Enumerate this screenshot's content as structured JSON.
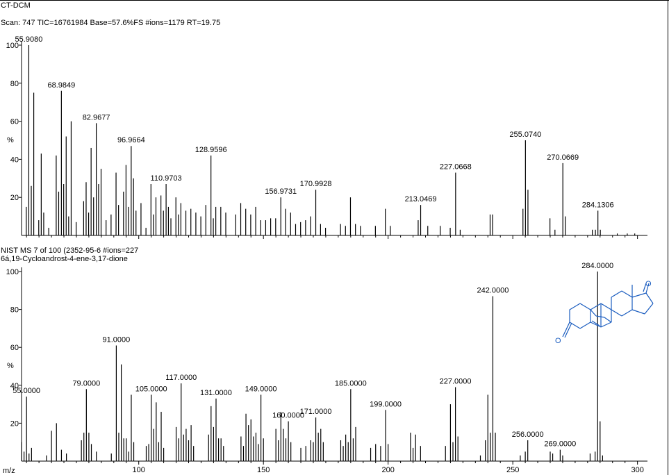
{
  "header": {
    "window_title": "CT-DCM",
    "scan_line": "Scan: 747   TIC=16761984   Base=57.6%FS   #ions=1179   RT=19.75"
  },
  "library": {
    "hit_line": "NIST MS 7 of 100 (2352-95-6   #ions=227",
    "compound_name": "6á,19-Cycloandrost-4-ene-3,17-dione"
  },
  "axis": {
    "y_unit": "%",
    "x_unit": "m/z"
  },
  "colors": {
    "spectrum": "#000000",
    "structure": "#1a5cbf"
  },
  "chart_data": [
    {
      "type": "bar",
      "title": "Scan: 747   TIC=16761984   Base=57.6%FS   #ions=1179   RT=19.75",
      "ylabel": "%",
      "xlim": [
        53,
        304
      ],
      "ylim": [
        0,
        100
      ],
      "y_ticks": [
        20,
        40,
        60,
        80,
        100
      ],
      "grid": false,
      "peaks": [
        [
          54.9,
          15
        ],
        [
          55.91,
          100
        ],
        [
          56.9,
          26
        ],
        [
          57.9,
          75
        ],
        [
          59.9,
          8
        ],
        [
          60.9,
          43
        ],
        [
          61.9,
          12
        ],
        [
          63.9,
          4
        ],
        [
          66.9,
          42
        ],
        [
          67.9,
          23
        ],
        [
          68.98,
          76
        ],
        [
          69.9,
          27
        ],
        [
          70.9,
          52
        ],
        [
          71.9,
          10
        ],
        [
          72.9,
          60
        ],
        [
          74.9,
          7
        ],
        [
          77.9,
          18
        ],
        [
          78.9,
          28
        ],
        [
          79.9,
          12
        ],
        [
          80.9,
          46
        ],
        [
          81.9,
          20
        ],
        [
          82.97,
          59
        ],
        [
          83.9,
          27
        ],
        [
          84.9,
          35
        ],
        [
          86.9,
          8
        ],
        [
          88.9,
          11
        ],
        [
          90.9,
          33
        ],
        [
          91.9,
          16
        ],
        [
          93.9,
          23
        ],
        [
          94.9,
          37
        ],
        [
          95.9,
          15
        ],
        [
          96.97,
          47
        ],
        [
          97.9,
          30
        ],
        [
          98.9,
          13
        ],
        [
          100.9,
          17
        ],
        [
          102.9,
          4
        ],
        [
          104.9,
          27
        ],
        [
          105.9,
          11
        ],
        [
          106.9,
          20
        ],
        [
          108.9,
          21
        ],
        [
          109.9,
          13
        ],
        [
          110.97,
          27
        ],
        [
          111.9,
          15
        ],
        [
          112.9,
          9
        ],
        [
          114.9,
          20
        ],
        [
          115.9,
          11
        ],
        [
          116.9,
          17
        ],
        [
          118.9,
          13
        ],
        [
          120.9,
          14
        ],
        [
          122.9,
          12
        ],
        [
          124.9,
          10
        ],
        [
          126.9,
          16
        ],
        [
          128.96,
          42
        ],
        [
          129.9,
          9
        ],
        [
          130.9,
          15
        ],
        [
          132.9,
          15
        ],
        [
          134.9,
          12
        ],
        [
          138.9,
          11
        ],
        [
          140.9,
          17
        ],
        [
          142.9,
          14
        ],
        [
          144.9,
          11
        ],
        [
          146.9,
          15
        ],
        [
          148.9,
          8
        ],
        [
          150.9,
          8
        ],
        [
          152.9,
          9
        ],
        [
          154.9,
          9
        ],
        [
          156.97,
          20
        ],
        [
          158.9,
          14
        ],
        [
          160.9,
          12
        ],
        [
          162.9,
          6
        ],
        [
          164.9,
          7
        ],
        [
          166.9,
          8
        ],
        [
          168.9,
          10
        ],
        [
          170.99,
          24
        ],
        [
          172.9,
          6
        ],
        [
          174.9,
          4
        ],
        [
          180.9,
          6
        ],
        [
          182.9,
          5
        ],
        [
          184.9,
          20
        ],
        [
          186.9,
          6
        ],
        [
          188.9,
          5
        ],
        [
          194.9,
          5
        ],
        [
          198.9,
          14
        ],
        [
          200.9,
          5
        ],
        [
          212.05,
          8
        ],
        [
          213.05,
          16
        ],
        [
          215.9,
          5
        ],
        [
          220.9,
          5
        ],
        [
          224.9,
          4
        ],
        [
          227.07,
          33
        ],
        [
          228.9,
          3
        ],
        [
          240.9,
          11
        ],
        [
          241.9,
          11
        ],
        [
          254.07,
          14
        ],
        [
          255.07,
          50
        ],
        [
          256.07,
          24
        ],
        [
          264.9,
          9
        ],
        [
          266.9,
          3
        ],
        [
          270.07,
          38
        ],
        [
          271.07,
          10
        ],
        [
          281.9,
          3
        ],
        [
          283.13,
          3
        ],
        [
          284.13,
          13
        ],
        [
          285.1,
          3
        ],
        [
          291.9,
          1
        ],
        [
          295.9,
          1
        ],
        [
          298.9,
          1
        ]
      ],
      "annotations": [
        {
          "mz": 55.908,
          "text": "55.9080"
        },
        {
          "mz": 68.9849,
          "text": "68.9849"
        },
        {
          "mz": 82.9677,
          "text": "82.9677"
        },
        {
          "mz": 96.9664,
          "text": "96.9664"
        },
        {
          "mz": 110.9703,
          "text": "110.9703"
        },
        {
          "mz": 128.9596,
          "text": "128.9596"
        },
        {
          "mz": 156.9731,
          "text": "156.9731"
        },
        {
          "mz": 170.9928,
          "text": "170.9928"
        },
        {
          "mz": 213.0469,
          "text": "213.0469"
        },
        {
          "mz": 227.0668,
          "text": "227.0668"
        },
        {
          "mz": 255.074,
          "text": "255.0740"
        },
        {
          "mz": 270.0669,
          "text": "270.0669"
        },
        {
          "mz": 284.1306,
          "text": "284.1306"
        }
      ]
    },
    {
      "type": "bar",
      "title": "NIST MS 7 of 100 (2352-95-6   #ions=227",
      "xlabel": "m/z",
      "ylabel": "%",
      "xlim": [
        53,
        304
      ],
      "ylim": [
        0,
        100
      ],
      "x_ticks": [
        100,
        150,
        200,
        250,
        300
      ],
      "y_ticks": [
        20,
        40,
        60,
        80,
        100
      ],
      "grid": false,
      "peaks": [
        [
          53,
          10
        ],
        [
          54,
          5
        ],
        [
          55,
          34
        ],
        [
          56,
          4
        ],
        [
          57,
          7
        ],
        [
          63,
          3
        ],
        [
          65,
          16
        ],
        [
          67,
          20
        ],
        [
          69,
          6
        ],
        [
          71,
          4
        ],
        [
          77,
          11
        ],
        [
          78,
          15
        ],
        [
          79,
          38
        ],
        [
          80,
          15
        ],
        [
          81,
          9
        ],
        [
          83,
          5
        ],
        [
          89,
          4
        ],
        [
          91,
          61
        ],
        [
          92,
          15
        ],
        [
          93,
          51
        ],
        [
          94,
          12
        ],
        [
          95,
          12
        ],
        [
          96,
          5
        ],
        [
          97,
          35
        ],
        [
          98,
          10
        ],
        [
          103,
          8
        ],
        [
          104,
          9
        ],
        [
          105,
          35
        ],
        [
          106,
          17
        ],
        [
          107,
          31
        ],
        [
          108,
          10
        ],
        [
          109,
          26
        ],
        [
          110,
          7
        ],
        [
          115,
          18
        ],
        [
          116,
          12
        ],
        [
          117,
          41
        ],
        [
          118,
          14
        ],
        [
          119,
          17
        ],
        [
          120,
          11
        ],
        [
          121,
          19
        ],
        [
          122,
          8
        ],
        [
          128,
          14
        ],
        [
          129,
          29
        ],
        [
          130,
          18
        ],
        [
          131,
          33
        ],
        [
          132,
          12
        ],
        [
          133,
          12
        ],
        [
          134,
          8
        ],
        [
          141,
          13
        ],
        [
          142,
          8
        ],
        [
          143,
          25
        ],
        [
          144,
          19
        ],
        [
          145,
          22
        ],
        [
          146,
          13
        ],
        [
          147,
          15
        ],
        [
          148,
          9
        ],
        [
          149,
          35
        ],
        [
          150,
          12
        ],
        [
          155,
          17
        ],
        [
          156,
          11
        ],
        [
          157,
          26
        ],
        [
          158,
          17
        ],
        [
          159,
          12
        ],
        [
          160,
          21
        ],
        [
          161,
          10
        ],
        [
          165,
          7
        ],
        [
          167,
          8
        ],
        [
          169,
          11
        ],
        [
          170,
          10
        ],
        [
          171,
          23
        ],
        [
          172,
          15
        ],
        [
          173,
          17
        ],
        [
          174,
          10
        ],
        [
          181,
          11
        ],
        [
          182,
          8
        ],
        [
          183,
          14
        ],
        [
          184,
          10
        ],
        [
          185,
          38
        ],
        [
          186,
          12
        ],
        [
          187,
          18
        ],
        [
          193,
          7
        ],
        [
          195,
          9
        ],
        [
          197,
          8
        ],
        [
          199,
          27
        ],
        [
          200,
          9
        ],
        [
          209,
          15
        ],
        [
          210,
          7
        ],
        [
          211,
          14
        ],
        [
          213,
          8
        ],
        [
          223,
          8
        ],
        [
          225,
          30
        ],
        [
          226,
          10
        ],
        [
          227,
          39
        ],
        [
          228,
          13
        ],
        [
          237,
          3
        ],
        [
          239,
          11
        ],
        [
          240,
          35
        ],
        [
          241,
          15
        ],
        [
          242,
          87
        ],
        [
          243,
          15
        ],
        [
          253,
          3
        ],
        [
          255,
          5
        ],
        [
          256,
          11
        ],
        [
          265,
          5
        ],
        [
          266,
          4
        ],
        [
          269,
          6
        ],
        [
          270,
          3
        ],
        [
          281,
          4
        ],
        [
          283,
          5
        ],
        [
          284,
          100
        ],
        [
          285,
          21
        ],
        [
          286,
          3
        ]
      ],
      "annotations": [
        {
          "mz": 55,
          "text": "55.0000"
        },
        {
          "mz": 79,
          "text": "79.0000"
        },
        {
          "mz": 91,
          "text": "91.0000"
        },
        {
          "mz": 105,
          "text": "105.0000"
        },
        {
          "mz": 117,
          "text": "117.0000"
        },
        {
          "mz": 131,
          "text": "131.0000"
        },
        {
          "mz": 149,
          "text": "149.0000"
        },
        {
          "mz": 160,
          "text": "160.0000"
        },
        {
          "mz": 171,
          "text": "171.0000"
        },
        {
          "mz": 185,
          "text": "185.0000"
        },
        {
          "mz": 199,
          "text": "199.0000"
        },
        {
          "mz": 227,
          "text": "227.0000"
        },
        {
          "mz": 242,
          "text": "242.0000"
        },
        {
          "mz": 256,
          "text": "256.0000"
        },
        {
          "mz": 269,
          "text": "269.0000"
        },
        {
          "mz": 284,
          "text": "284.0000"
        }
      ]
    }
  ]
}
